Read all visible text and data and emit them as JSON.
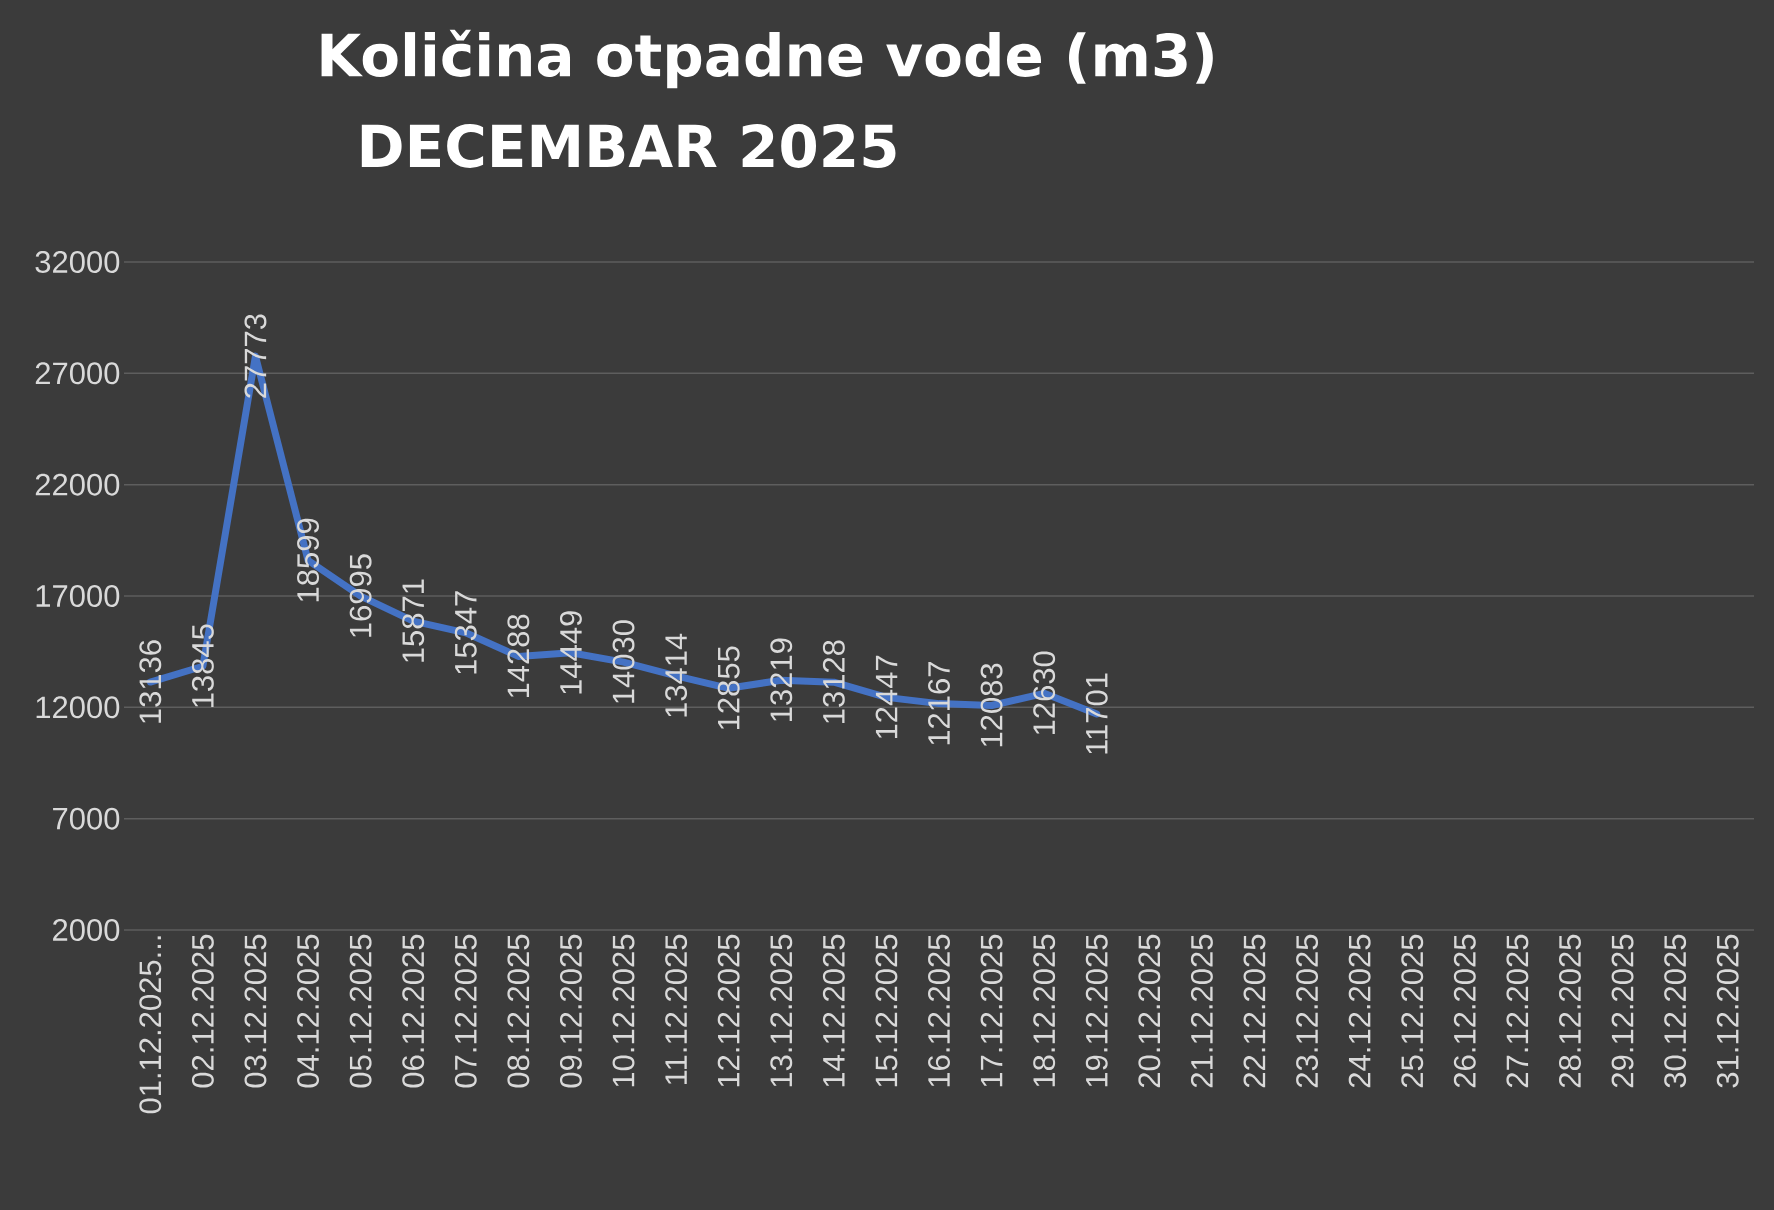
{
  "chart_data": {
    "type": "line",
    "title": "Količina otpadne vode (m3)",
    "subtitle": "DECEMBAR 2025",
    "categories": [
      "01.12.2025...",
      "02.12.2025",
      "03.12.2025",
      "04.12.2025",
      "05.12.2025",
      "06.12.2025",
      "07.12.2025",
      "08.12.2025",
      "09.12.2025",
      "10.12.2025",
      "11.12.2025",
      "12.12.2025",
      "13.12.2025",
      "14.12.2025",
      "15.12.2025",
      "16.12.2025",
      "17.12.2025",
      "18.12.2025",
      "19.12.2025",
      "20.12.2025",
      "21.12.2025",
      "22.12.2025",
      "23.12.2025",
      "24.12.2025",
      "25.12.2025",
      "26.12.2025",
      "27.12.2025",
      "28.12.2025",
      "29.12.2025",
      "30.12.2025",
      "31.12.2025"
    ],
    "values": [
      13136,
      13845,
      27773,
      18599,
      16995,
      15871,
      15347,
      14288,
      14449,
      14030,
      13414,
      12855,
      13219,
      13128,
      12447,
      12167,
      12083,
      12630,
      11701,
      null,
      null,
      null,
      null,
      null,
      null,
      null,
      null,
      null,
      null,
      null,
      null
    ],
    "color": "#4472c4",
    "ylim": [
      2000,
      32000
    ],
    "yticks": [
      2000,
      7000,
      12000,
      17000,
      22000,
      27000,
      32000
    ],
    "grid": "y",
    "data_labels": true
  }
}
